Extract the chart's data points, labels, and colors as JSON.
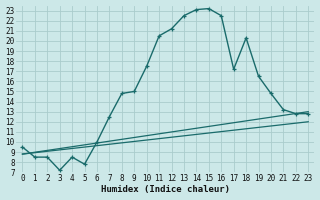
{
  "xlabel": "Humidex (Indice chaleur)",
  "bg_color": "#cce8e8",
  "grid_color": "#aacccc",
  "line_color": "#1a6b6b",
  "xlim": [
    -0.5,
    23.5
  ],
  "ylim": [
    7,
    23.5
  ],
  "xticks": [
    0,
    1,
    2,
    3,
    4,
    5,
    6,
    7,
    8,
    9,
    10,
    11,
    12,
    13,
    14,
    15,
    16,
    17,
    18,
    19,
    20,
    21,
    22,
    23
  ],
  "yticks": [
    7,
    8,
    9,
    10,
    11,
    12,
    13,
    14,
    15,
    16,
    17,
    18,
    19,
    20,
    21,
    22,
    23
  ],
  "curve1_x": [
    0,
    1,
    2,
    3,
    4,
    5,
    6,
    7,
    8,
    9,
    10,
    11,
    12,
    13,
    14,
    15,
    16,
    17,
    18,
    19,
    20,
    21,
    22,
    23
  ],
  "curve1_y": [
    9.5,
    8.5,
    8.5,
    7.2,
    8.5,
    7.8,
    10.0,
    12.5,
    14.8,
    15.0,
    17.5,
    20.5,
    21.2,
    22.5,
    23.1,
    23.2,
    22.5,
    17.2,
    20.3,
    16.5,
    14.8,
    13.2,
    12.8,
    12.8
  ],
  "line1_x": [
    0,
    23
  ],
  "line1_y": [
    8.8,
    13.0
  ],
  "line2_x": [
    0,
    23
  ],
  "line2_y": [
    8.8,
    12.0
  ]
}
